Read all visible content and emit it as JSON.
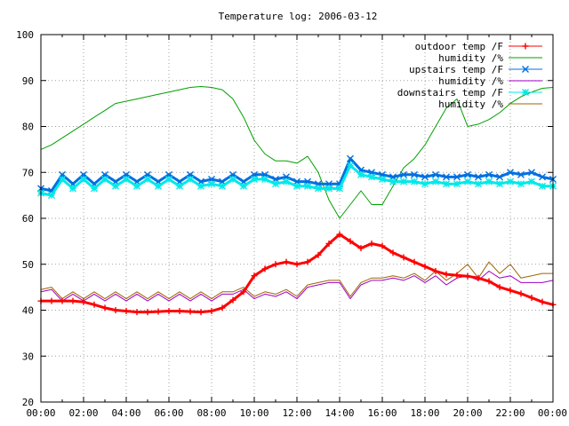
{
  "chart_data": {
    "type": "line",
    "title": "Temperature log: 2006-03-12",
    "xlabel": "",
    "ylabel": "",
    "ylim": [
      20,
      100
    ],
    "y_ticks": [
      20,
      30,
      40,
      50,
      60,
      70,
      80,
      90,
      100
    ],
    "x_tick_labels": [
      "00:00",
      "02:00",
      "04:00",
      "06:00",
      "08:00",
      "10:00",
      "12:00",
      "14:00",
      "16:00",
      "18:00",
      "20:00",
      "22:00",
      "00:00"
    ],
    "x_unit": "hours since 2006-03-12 00:00",
    "xlim": [
      0,
      24
    ],
    "grid": true,
    "legend_position": "top-right",
    "series": [
      {
        "name": "outdoor temp /F",
        "color": "#ff0000",
        "marker": "plus",
        "x": [
          0,
          0.5,
          1,
          1.5,
          2,
          2.5,
          3,
          3.5,
          4,
          4.5,
          5,
          5.5,
          6,
          6.5,
          7,
          7.5,
          8,
          8.5,
          9,
          9.5,
          10,
          10.5,
          11,
          11.5,
          12,
          12.5,
          13,
          13.5,
          14,
          14.5,
          15,
          15.5,
          16,
          16.5,
          17,
          17.5,
          18,
          18.5,
          19,
          19.5,
          20,
          20.5,
          21,
          21.5,
          22,
          22.5,
          23,
          23.5,
          24
        ],
        "values": [
          42,
          42,
          42,
          42,
          41.8,
          41.2,
          40.5,
          40,
          39.8,
          39.6,
          39.6,
          39.7,
          39.8,
          39.8,
          39.7,
          39.6,
          39.8,
          40.5,
          42.2,
          44,
          47.5,
          49,
          50,
          50.5,
          50,
          50.5,
          52,
          54.5,
          56.5,
          55,
          53.5,
          54.5,
          54,
          52.5,
          51.5,
          50.5,
          49.5,
          48.5,
          47.8,
          47.6,
          47.4,
          47,
          46.3,
          45,
          44.3,
          43.6,
          42.7,
          41.8,
          41.2
        ]
      },
      {
        "name": "humidity /%",
        "color": "#00a000",
        "marker": "none",
        "x": [
          0,
          0.5,
          1,
          1.5,
          2,
          2.5,
          3,
          3.5,
          4,
          4.5,
          5,
          5.5,
          6,
          6.5,
          7,
          7.5,
          8,
          8.5,
          9,
          9.5,
          10,
          10.5,
          11,
          11.5,
          12,
          12.5,
          13,
          13.5,
          14,
          14.5,
          15,
          15.5,
          16,
          16.5,
          17,
          17.5,
          18,
          18.5,
          19,
          19.5,
          20,
          20.5,
          21,
          21.5,
          22,
          22.5,
          23,
          23.5,
          24
        ],
        "values": [
          75,
          76,
          77.5,
          79,
          80.5,
          82,
          83.5,
          85,
          85.5,
          86,
          86.5,
          87,
          87.5,
          88,
          88.5,
          88.7,
          88.5,
          88,
          86,
          82,
          77,
          74,
          72.5,
          72.5,
          72,
          73.5,
          70,
          64,
          60,
          63,
          66,
          63,
          63,
          67,
          71,
          73,
          76,
          80,
          84,
          86,
          80,
          80.5,
          81.5,
          83,
          85,
          86.5,
          87.5,
          88.3,
          88.5
        ]
      },
      {
        "name": "upstairs temp /F",
        "color": "#0070e0",
        "marker": "cross",
        "x": [
          0,
          0.5,
          1,
          1.5,
          2,
          2.5,
          3,
          3.5,
          4,
          4.5,
          5,
          5.5,
          6,
          6.5,
          7,
          7.5,
          8,
          8.5,
          9,
          9.5,
          10,
          10.5,
          11,
          11.5,
          12,
          12.5,
          13,
          13.5,
          14,
          14.5,
          15,
          15.5,
          16,
          16.5,
          17,
          17.5,
          18,
          18.5,
          19,
          19.5,
          20,
          20.5,
          21,
          21.5,
          22,
          22.5,
          23,
          23.5,
          24
        ],
        "values": [
          66.5,
          66,
          69.5,
          67.5,
          69.5,
          67.5,
          69.5,
          68,
          69.5,
          68,
          69.5,
          68,
          69.5,
          68,
          69.5,
          68,
          68.5,
          68,
          69.5,
          68,
          69.5,
          69.5,
          68.5,
          69,
          68,
          68,
          67.5,
          67.5,
          67.5,
          73,
          70.5,
          70,
          69.5,
          69,
          69.5,
          69.5,
          69,
          69.5,
          69,
          69,
          69.5,
          69,
          69.5,
          69,
          70,
          69.5,
          70,
          69,
          68.5
        ]
      },
      {
        "name": "humidity /%",
        "color": "#a000c8",
        "marker": "none",
        "x": [
          0,
          0.5,
          1,
          1.5,
          2,
          2.5,
          3,
          3.5,
          4,
          4.5,
          5,
          5.5,
          6,
          6.5,
          7,
          7.5,
          8,
          8.5,
          9,
          9.5,
          10,
          10.5,
          11,
          11.5,
          12,
          12.5,
          13,
          13.5,
          14,
          14.5,
          15,
          15.5,
          16,
          16.5,
          17,
          17.5,
          18,
          18.5,
          19,
          19.5,
          20,
          20.5,
          21,
          21.5,
          22,
          22.5,
          23,
          23.5,
          24
        ],
        "values": [
          44,
          44.5,
          42,
          43.5,
          42,
          43.5,
          42,
          43.5,
          42,
          43.5,
          42,
          43.5,
          42,
          43.5,
          42,
          43.5,
          42,
          43.5,
          43.5,
          44.5,
          42.5,
          43.5,
          43,
          44,
          42.5,
          45,
          45.5,
          46,
          46,
          42.5,
          45.5,
          46.5,
          46.5,
          47,
          46.5,
          47.5,
          46,
          47.5,
          45.5,
          47,
          47.5,
          46.5,
          48.5,
          47,
          47.5,
          46,
          46,
          46,
          46.5
        ]
      },
      {
        "name": "downstairs temp /F",
        "color": "#00e8e8",
        "marker": "star",
        "x": [
          0,
          0.5,
          1,
          1.5,
          2,
          2.5,
          3,
          3.5,
          4,
          4.5,
          5,
          5.5,
          6,
          6.5,
          7,
          7.5,
          8,
          8.5,
          9,
          9.5,
          10,
          10.5,
          11,
          11.5,
          12,
          12.5,
          13,
          13.5,
          14,
          14.5,
          15,
          15.5,
          16,
          16.5,
          17,
          17.5,
          18,
          18.5,
          19,
          19.5,
          20,
          20.5,
          21,
          21.5,
          22,
          22.5,
          23,
          23.5,
          24
        ],
        "values": [
          65.5,
          65,
          68.5,
          66.5,
          68.5,
          66.5,
          68.5,
          67,
          68.5,
          67,
          68.5,
          67,
          68.5,
          67,
          68.5,
          67,
          67.5,
          67,
          68.5,
          67,
          68.5,
          68.5,
          67.5,
          68,
          67,
          67,
          66.5,
          66.5,
          66.5,
          71.5,
          69.5,
          69,
          68.5,
          68,
          68,
          68,
          67.5,
          68,
          67.5,
          67.5,
          68,
          67.5,
          68,
          67.5,
          68,
          67.5,
          68,
          67,
          67
        ]
      },
      {
        "name": "humidity /%",
        "color": "#a06400",
        "marker": "none",
        "x": [
          0,
          0.5,
          1,
          1.5,
          2,
          2.5,
          3,
          3.5,
          4,
          4.5,
          5,
          5.5,
          6,
          6.5,
          7,
          7.5,
          8,
          8.5,
          9,
          9.5,
          10,
          10.5,
          11,
          11.5,
          12,
          12.5,
          13,
          13.5,
          14,
          14.5,
          15,
          15.5,
          16,
          16.5,
          17,
          17.5,
          18,
          18.5,
          19,
          19.5,
          20,
          20.5,
          21,
          21.5,
          22,
          22.5,
          23,
          23.5,
          24
        ],
        "values": [
          44.5,
          45,
          42.5,
          44,
          42.5,
          44,
          42.5,
          44,
          42.5,
          44,
          42.5,
          44,
          42.5,
          44,
          42.5,
          44,
          42.5,
          44,
          44,
          45,
          43,
          44,
          43.5,
          44.5,
          43,
          45.5,
          46,
          46.5,
          46.5,
          43,
          46,
          47,
          47,
          47.5,
          47,
          48,
          46.5,
          48.5,
          46.5,
          48,
          50,
          47,
          50.5,
          48,
          50,
          47,
          47.5,
          48,
          48
        ]
      }
    ]
  }
}
